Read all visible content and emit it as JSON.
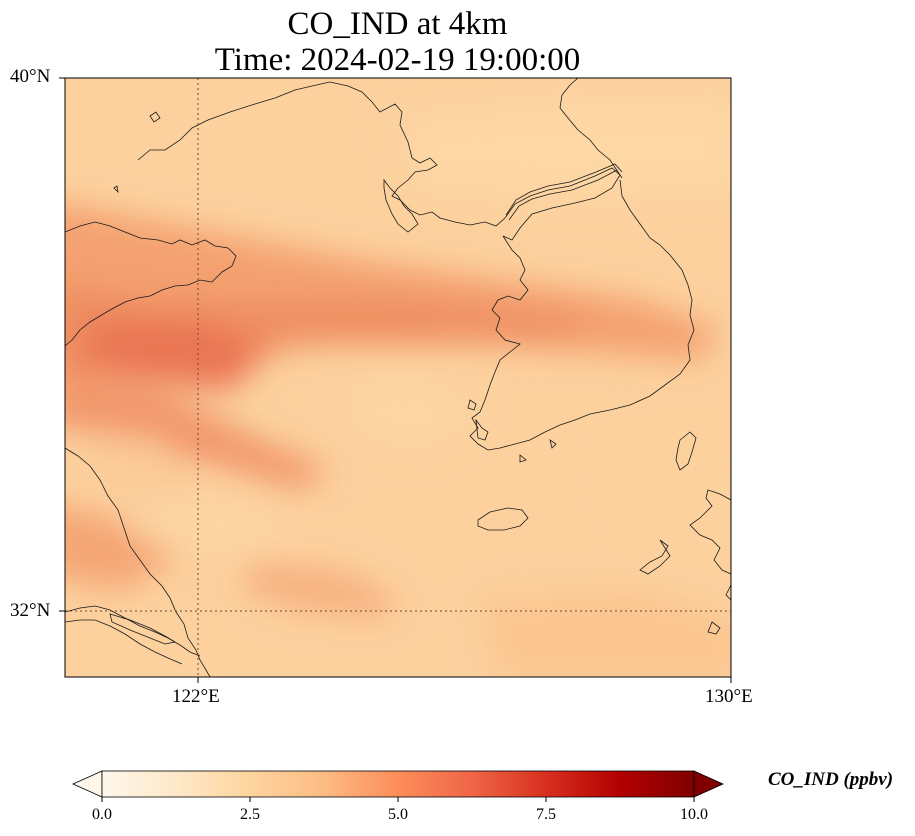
{
  "title": {
    "line1": "CO_IND at 4km",
    "line2": "Time: 2024-02-19 19:00:00"
  },
  "map": {
    "lon_range_deg": [
      120.0,
      130.0
    ],
    "lat_range_deg": [
      31.0,
      40.0
    ],
    "gridlines": {
      "lon": [
        122
      ],
      "lat": [
        32
      ],
      "style": "dotted"
    },
    "lat_labels": [
      "40°N",
      "32°N"
    ],
    "lon_labels": [
      "122°E",
      "130°E"
    ],
    "field_description": "CO_IND concentration field with elevated band from eastern China across the Yellow Sea to central Korea",
    "coastline_color": "#000000"
  },
  "colorbar": {
    "label": "CO_IND (ppbv)",
    "min": 0.0,
    "max": 10.0,
    "ticks": [
      "0.0",
      "2.5",
      "5.0",
      "7.5",
      "10.0"
    ],
    "extend": "both",
    "colormap": "OrRd",
    "colors": [
      "#fff7ec",
      "#fdd49e",
      "#fc8d59",
      "#d7301f",
      "#7f0000"
    ]
  }
}
